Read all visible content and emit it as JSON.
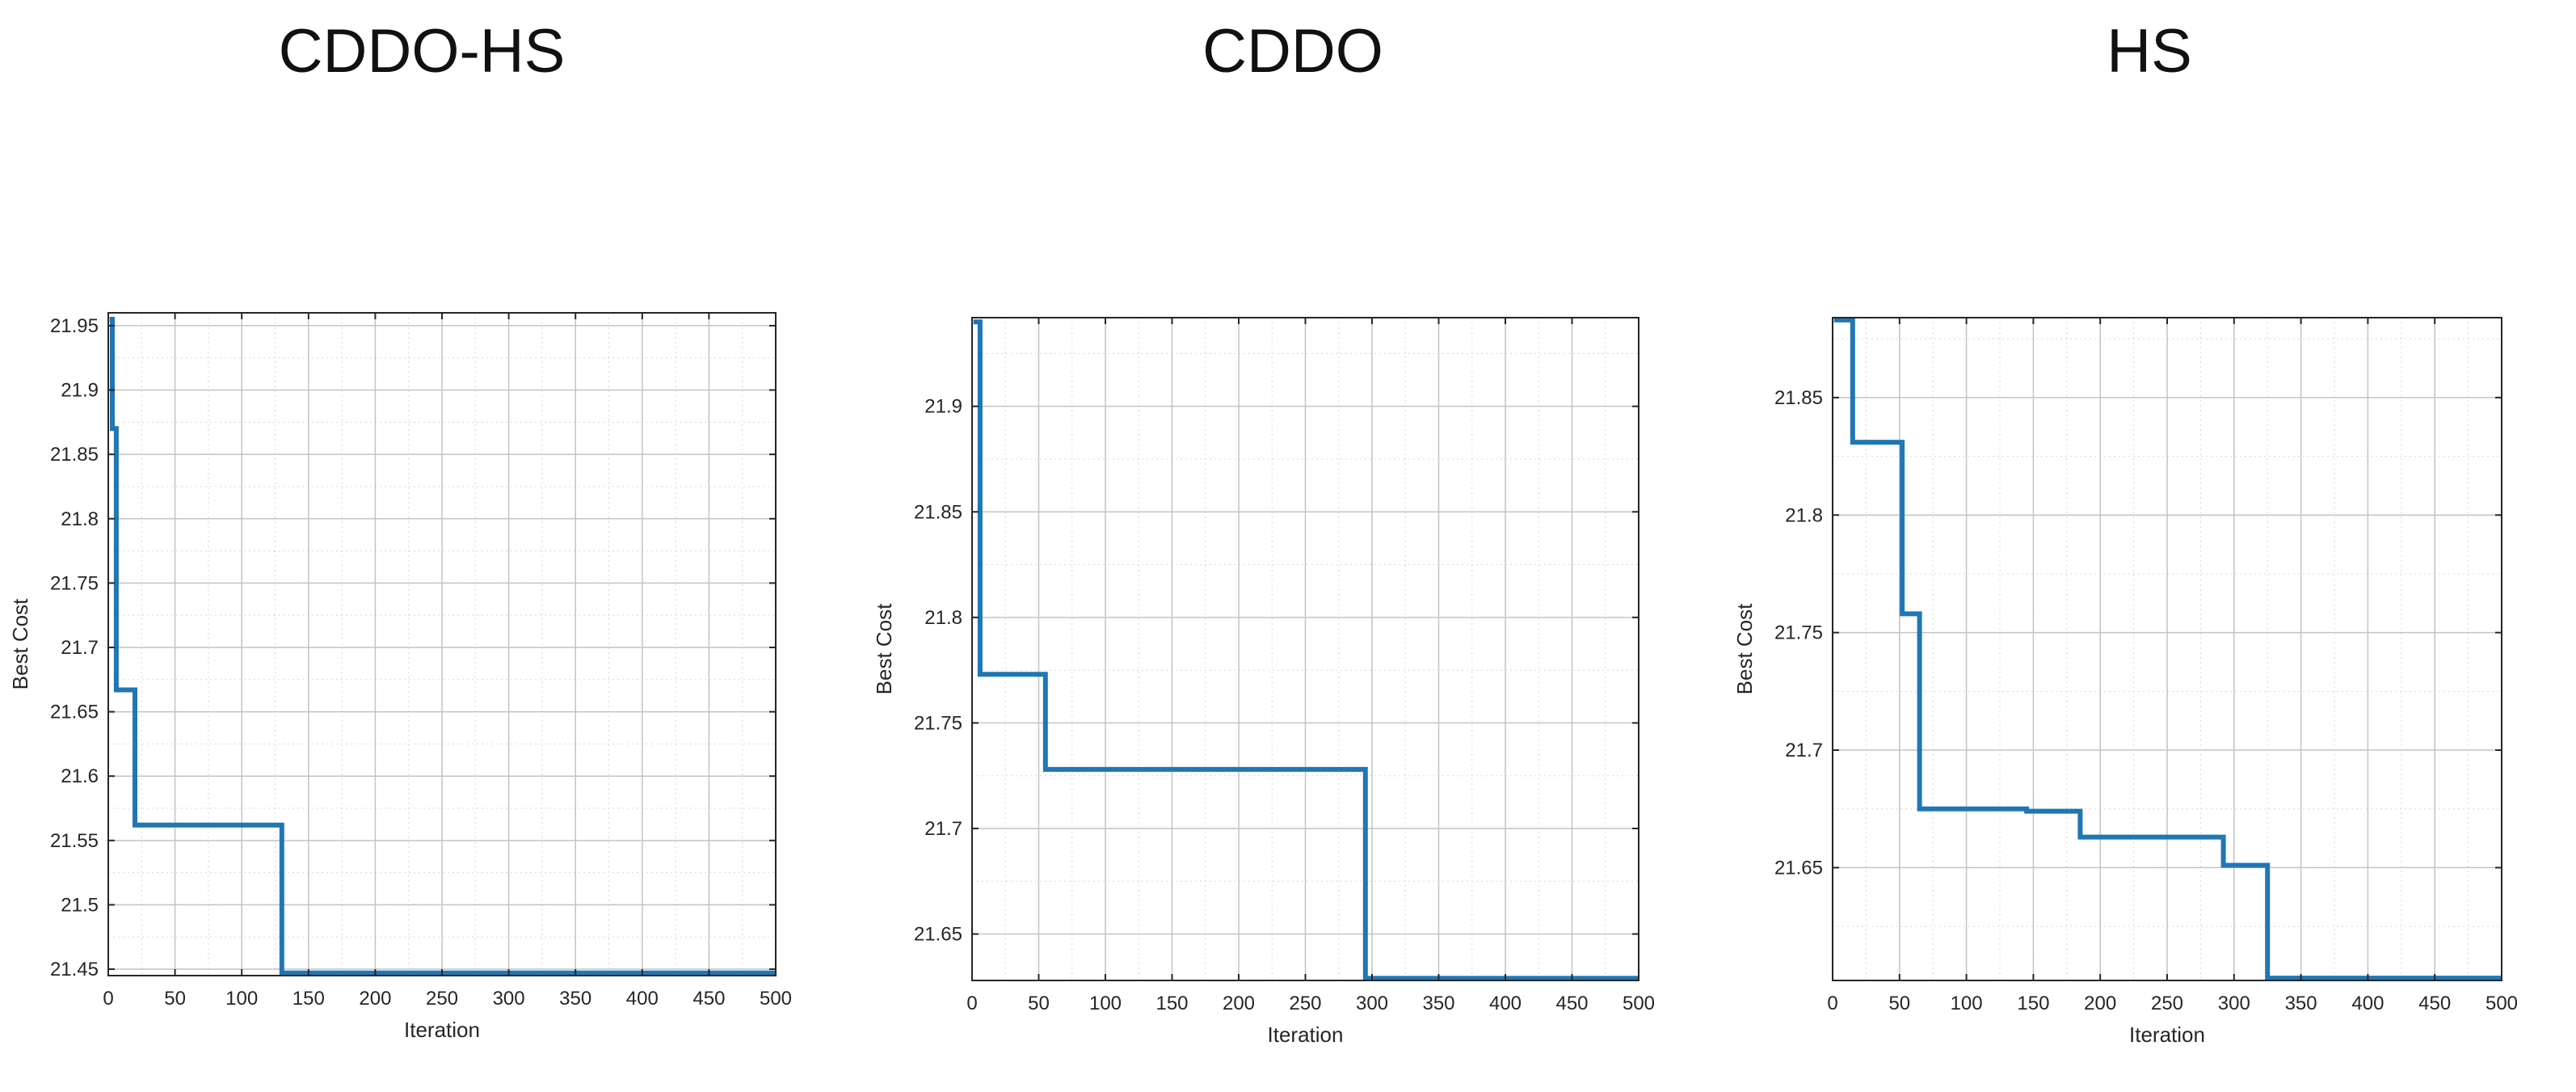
{
  "chart_data": [
    {
      "type": "line",
      "title": "CDDO-HS",
      "xlabel": "Iteration",
      "ylabel": "Best Cost",
      "xlim": [
        0,
        500
      ],
      "ylim": [
        21.445,
        21.96
      ],
      "xticks": [
        0,
        50,
        100,
        150,
        200,
        250,
        300,
        350,
        400,
        450,
        500
      ],
      "yticks": [
        21.45,
        21.5,
        21.55,
        21.6,
        21.65,
        21.7,
        21.75,
        21.8,
        21.85,
        21.9,
        21.95
      ],
      "ytick_labels": [
        "21.45",
        "21.5",
        "21.55",
        "21.6",
        "21.65",
        "21.7",
        "21.75",
        "21.8",
        "21.85",
        "21.9",
        "21.95"
      ],
      "grid": true,
      "line_color": "#1f77b4",
      "series": [
        {
          "x": [
            1,
            3,
            3,
            6,
            6,
            20,
            20,
            130,
            130,
            500
          ],
          "y": [
            21.955,
            21.955,
            21.87,
            21.87,
            21.667,
            21.667,
            21.562,
            21.562,
            21.447,
            21.447
          ]
        }
      ]
    },
    {
      "type": "line",
      "title": "CDDO",
      "xlabel": "Iteration",
      "ylabel": "Best Cost",
      "xlim": [
        0,
        500
      ],
      "ylim": [
        21.628,
        21.942
      ],
      "xticks": [
        0,
        50,
        100,
        150,
        200,
        250,
        300,
        350,
        400,
        450,
        500
      ],
      "yticks": [
        21.65,
        21.7,
        21.75,
        21.8,
        21.85,
        21.9
      ],
      "ytick_labels": [
        "21.65",
        "21.7",
        "21.75",
        "21.8",
        "21.85",
        "21.9"
      ],
      "grid": true,
      "line_color": "#1f77b4",
      "series": [
        {
          "x": [
            1,
            6,
            6,
            55,
            55,
            295,
            295,
            500
          ],
          "y": [
            21.94,
            21.94,
            21.773,
            21.773,
            21.728,
            21.728,
            21.629,
            21.629
          ]
        }
      ]
    },
    {
      "type": "line",
      "title": "HS",
      "xlabel": "Iteration",
      "ylabel": "Best Cost",
      "xlim": [
        0,
        500
      ],
      "ylim": [
        21.602,
        21.884
      ],
      "xticks": [
        0,
        50,
        100,
        150,
        200,
        250,
        300,
        350,
        400,
        450,
        500
      ],
      "yticks": [
        21.65,
        21.7,
        21.75,
        21.8,
        21.85
      ],
      "ytick_labels": [
        "21.65",
        "21.7",
        "21.75",
        "21.8",
        "21.85"
      ],
      "grid": true,
      "line_color": "#1f77b4",
      "series": [
        {
          "x": [
            1,
            15,
            15,
            52,
            52,
            65,
            65,
            145,
            145,
            185,
            185,
            292,
            292,
            325,
            325,
            500
          ],
          "y": [
            21.883,
            21.883,
            21.831,
            21.831,
            21.758,
            21.758,
            21.675,
            21.675,
            21.674,
            21.674,
            21.663,
            21.663,
            21.651,
            21.651,
            21.603,
            21.603
          ]
        }
      ]
    }
  ]
}
